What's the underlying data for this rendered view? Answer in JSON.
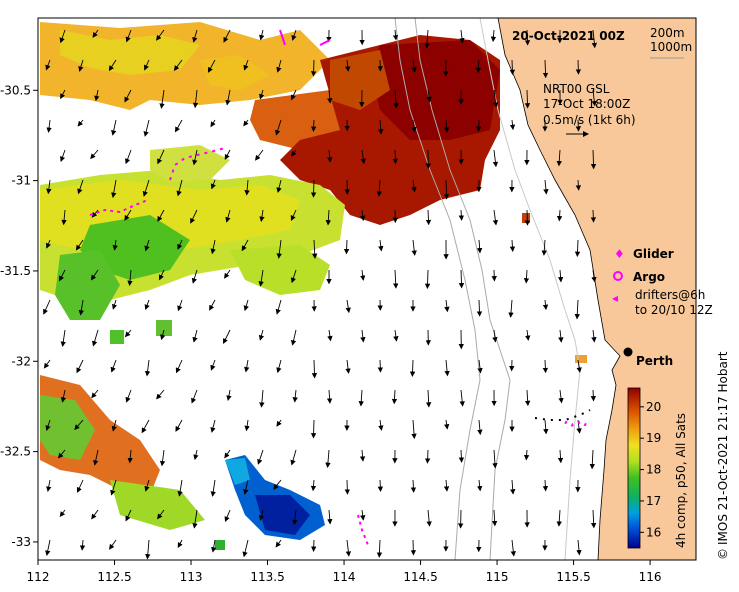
{
  "map": {
    "date_title": "20-Oct-2021 00Z",
    "contour_legend": [
      "200m",
      "1000m"
    ],
    "current_product": "NRT00 GSL",
    "current_time": "17-Oct 18:00Z",
    "arrow_scale": "0.5m/s (1kt 6h)",
    "place_label": "Perth",
    "x_ticks": [
      "112",
      "112.5",
      "113",
      "113.5",
      "114",
      "114.5",
      "115",
      "115.5",
      "116"
    ],
    "y_ticks": [
      "-30.5",
      "-31",
      "-31.5",
      "-32",
      "-32.5",
      "-33"
    ],
    "x_tick_values": [
      112,
      112.5,
      113,
      113.5,
      114,
      114.5,
      115,
      115.5,
      116
    ],
    "y_tick_values": [
      -30.5,
      -31,
      -31.5,
      -32,
      -32.5,
      -33
    ],
    "lon_range": [
      112.0,
      116.3
    ],
    "lat_range": [
      -33.1,
      -30.1
    ],
    "credit": "IMOS 21-Oct-2021 21:17 Hobart",
    "copyright_symbol": "©"
  },
  "legend": {
    "glider": "Glider",
    "argo": "Argo",
    "drifters_line1": "drifters@6h",
    "drifters_line2": "to 20/10 12Z"
  },
  "colorbar": {
    "ticks": [
      "20",
      "19",
      "18",
      "17",
      "16"
    ],
    "tick_values": [
      20,
      19,
      18,
      17,
      16
    ],
    "range": [
      15.5,
      20.6
    ],
    "label": "4h comp, p50, All Sats"
  },
  "colors": {
    "land": "#f8c89a",
    "glider": "#ff00ff",
    "sst_hot": "#a00000",
    "sst_cold": "#00008c"
  }
}
